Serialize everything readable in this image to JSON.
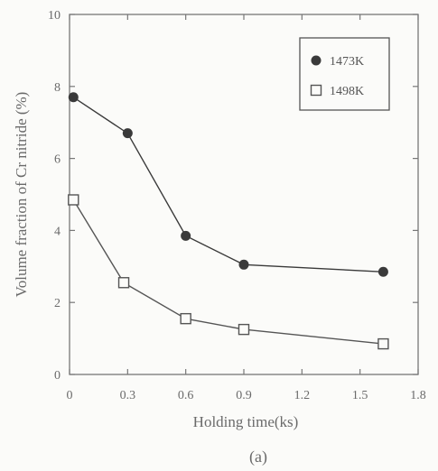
{
  "chart_data": {
    "type": "line",
    "xlabel": "Holding time(ks)",
    "ylabel": "Volume fraction of Cr nitride (%)",
    "panel_label": "(a)",
    "xlim": [
      0,
      1.8
    ],
    "ylim": [
      0,
      10
    ],
    "xticks": [
      0,
      0.3,
      0.6,
      0.9,
      1.2,
      1.5,
      1.8
    ],
    "xtick_labels": [
      "0",
      "0.3",
      "0.6",
      "0.9",
      "1.2",
      "1.5",
      "1.8"
    ],
    "yticks": [
      0,
      2,
      4,
      6,
      8,
      10
    ],
    "ytick_labels": [
      "0",
      "2",
      "4",
      "6",
      "8",
      "10"
    ],
    "grid": false,
    "legend_position": "top-right",
    "series": [
      {
        "name": "1473K",
        "marker": "filled-circle",
        "color": "#3a3a3a",
        "x": [
          0.02,
          0.3,
          0.6,
          0.9,
          1.62
        ],
        "y": [
          7.7,
          6.7,
          3.85,
          3.05,
          2.85
        ]
      },
      {
        "name": "1498K",
        "marker": "open-square",
        "color": "#555555",
        "x": [
          0.02,
          0.28,
          0.6,
          0.9,
          1.62
        ],
        "y": [
          4.85,
          2.55,
          1.55,
          1.25,
          0.85
        ]
      }
    ]
  }
}
